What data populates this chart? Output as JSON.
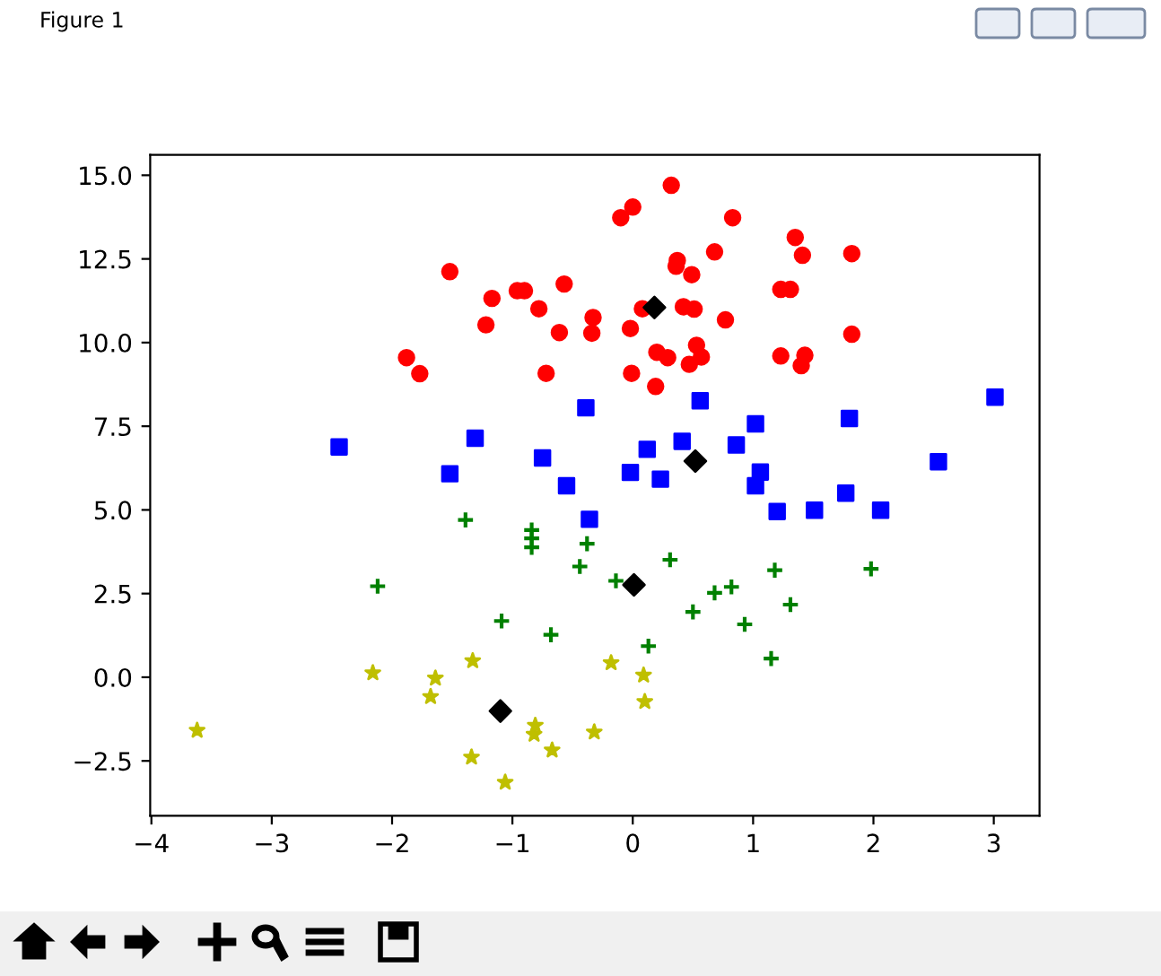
{
  "chart_data": {
    "type": "scatter",
    "annotations": [
      "Figure 1"
    ],
    "xlim": [
      -4.01,
      3.38
    ],
    "ylim": [
      -4.14,
      15.61
    ],
    "xticks": [
      {
        "value": -4,
        "label": "−4"
      },
      {
        "value": -3,
        "label": "−3"
      },
      {
        "value": -2,
        "label": "−2"
      },
      {
        "value": -1,
        "label": "−1"
      },
      0,
      1,
      2,
      3
    ],
    "yticks": [
      {
        "value": -2.5,
        "label": "−2.5"
      },
      {
        "value": 0,
        "label": "0.0"
      },
      {
        "value": 2.5,
        "label": "2.5"
      },
      {
        "value": 5,
        "label": "5.0"
      },
      {
        "value": 7.5,
        "label": "7.5"
      },
      {
        "value": 10,
        "label": "10.0"
      },
      {
        "value": 12.5,
        "label": "12.5"
      },
      {
        "value": 15,
        "label": "15.0"
      }
    ],
    "grid": false,
    "series": [
      {
        "color": "#ff0000",
        "marker": "circle",
        "x": [
          -1.52,
          -1.17,
          -1.22,
          -0.96,
          -0.9,
          -0.78,
          -0.57,
          -0.61,
          -0.72,
          -0.33,
          -0.34,
          -0.1,
          0.0,
          0.32,
          0.83,
          0.68,
          0.37,
          0.36,
          0.49,
          0.08,
          0.42,
          0.51,
          0.77,
          -0.02,
          0.2,
          0.29,
          0.53,
          0.57,
          0.47,
          -0.01,
          0.19,
          -1.88,
          -1.77,
          1.35,
          1.41,
          1.82,
          1.23,
          1.31,
          1.82,
          1.23,
          1.43,
          1.4
        ],
        "values": [
          12.12,
          11.32,
          10.53,
          11.55,
          11.55,
          11.01,
          11.75,
          10.3,
          9.08,
          10.75,
          10.28,
          13.73,
          14.05,
          14.7,
          13.73,
          12.71,
          12.45,
          12.28,
          12.03,
          11.01,
          11.07,
          11.0,
          10.68,
          10.42,
          9.71,
          9.55,
          9.92,
          9.57,
          9.35,
          9.08,
          8.69,
          9.55,
          9.07,
          13.14,
          12.61,
          12.66,
          11.59,
          11.59,
          10.25,
          9.6,
          9.62,
          9.31
        ]
      },
      {
        "color": "#0000ff",
        "marker": "square",
        "x": [
          -2.44,
          -1.52,
          -1.31,
          -0.75,
          -0.55,
          -0.39,
          -0.36,
          -0.02,
          0.12,
          0.23,
          0.41,
          0.56,
          0.86,
          1.02,
          1.06,
          1.02,
          1.2,
          1.51,
          1.77,
          1.8,
          2.06,
          2.54,
          3.01
        ],
        "values": [
          6.88,
          6.08,
          7.14,
          6.55,
          5.72,
          8.05,
          4.72,
          6.12,
          6.81,
          5.92,
          7.05,
          8.26,
          6.94,
          7.57,
          6.13,
          5.72,
          4.95,
          4.99,
          5.5,
          7.73,
          4.99,
          6.44,
          8.37
        ]
      },
      {
        "color": "#008000",
        "marker": "cross",
        "x": [
          -1.39,
          -0.84,
          -0.84,
          -0.84,
          -0.38,
          -0.44,
          0.31,
          -0.14,
          0.68,
          0.82,
          0.5,
          0.93,
          -1.09,
          -0.68,
          0.13,
          -2.12,
          1.18,
          1.98,
          1.31,
          1.15
        ],
        "values": [
          4.7,
          4.4,
          4.15,
          3.88,
          3.99,
          3.31,
          3.51,
          2.88,
          2.52,
          2.7,
          1.95,
          1.58,
          1.68,
          1.27,
          0.93,
          2.72,
          3.2,
          3.24,
          2.17,
          0.56
        ]
      },
      {
        "color": "#bfbf00",
        "marker": "star",
        "x": [
          -3.62,
          -2.16,
          -1.64,
          -1.68,
          -1.33,
          -1.34,
          -1.06,
          -0.81,
          -0.82,
          -0.67,
          -0.32,
          -0.18,
          0.09,
          0.1
        ],
        "values": [
          -1.59,
          0.13,
          -0.03,
          -0.58,
          0.49,
          -2.39,
          -3.14,
          -1.44,
          -1.71,
          -2.18,
          -1.64,
          0.43,
          0.06,
          -0.73
        ]
      },
      {
        "color": "#000000",
        "marker": "diamond",
        "x": [
          0.18,
          0.52,
          0.01,
          -1.1
        ],
        "values": [
          11.05,
          6.46,
          2.76,
          -1.01
        ]
      }
    ]
  }
}
